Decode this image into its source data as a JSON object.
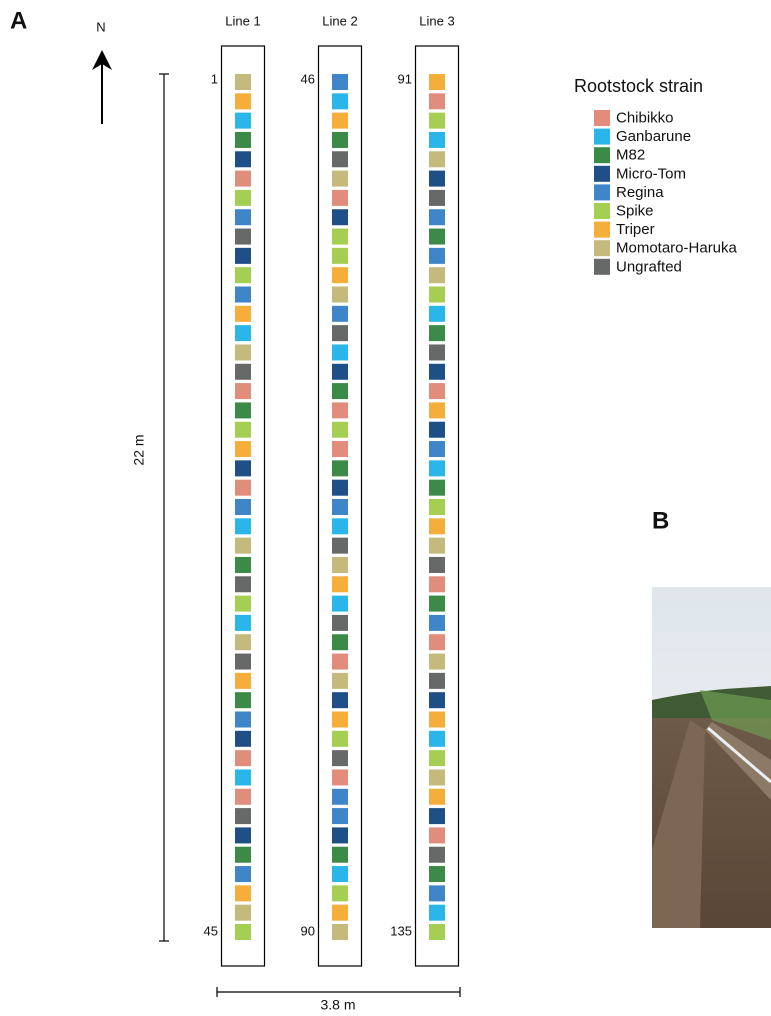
{
  "panel_a": {
    "label": "A",
    "north": "N",
    "length": "22 m",
    "width": "3.8 m",
    "legend": {
      "title": "Rootstock strain",
      "strains": [
        {
          "name": "Chibikko",
          "color": "#e28c7c"
        },
        {
          "name": "Ganbarune",
          "color": "#2ab6e9"
        },
        {
          "name": "M82",
          "color": "#3b8a48"
        },
        {
          "name": "Micro-Tom",
          "color": "#1f4f87"
        },
        {
          "name": "Regina",
          "color": "#3f86c8"
        },
        {
          "name": "Spike",
          "color": "#a5cf52"
        },
        {
          "name": "Triper",
          "color": "#f6ae3b"
        },
        {
          "name": "Momotaro-Haruka",
          "color": "#c3ba7c"
        },
        {
          "name": "Ungrafted",
          "color": "#676868"
        }
      ]
    },
    "lines": [
      {
        "label": "Line 1",
        "first": 1,
        "last": 45,
        "plots": [
          "Momotaro-Haruka",
          "Triper",
          "Ganbarune",
          "M82",
          "Micro-Tom",
          "Chibikko",
          "Spike",
          "Regina",
          "Ungrafted",
          "Micro-Tom",
          "Spike",
          "Regina",
          "Triper",
          "Ganbarune",
          "Momotaro-Haruka",
          "Ungrafted",
          "Chibikko",
          "M82",
          "Spike",
          "Triper",
          "Micro-Tom",
          "Chibikko",
          "Regina",
          "Ganbarune",
          "Momotaro-Haruka",
          "M82",
          "Ungrafted",
          "Spike",
          "Ganbarune",
          "Momotaro-Haruka",
          "Ungrafted",
          "Triper",
          "M82",
          "Regina",
          "Micro-Tom",
          "Chibikko",
          "Ganbarune",
          "Chibikko",
          "Ungrafted",
          "Micro-Tom",
          "M82",
          "Regina",
          "Triper",
          "Momotaro-Haruka",
          "Spike"
        ]
      },
      {
        "label": "Line 2",
        "first": 46,
        "last": 90,
        "plots": [
          "Regina",
          "Ganbarune",
          "Triper",
          "M82",
          "Ungrafted",
          "Momotaro-Haruka",
          "Chibikko",
          "Micro-Tom",
          "Spike",
          "Spike",
          "Triper",
          "Momotaro-Haruka",
          "Regina",
          "Ungrafted",
          "Ganbarune",
          "Micro-Tom",
          "M82",
          "Chibikko",
          "Spike",
          "Chibikko",
          "M82",
          "Micro-Tom",
          "Regina",
          "Ganbarune",
          "Ungrafted",
          "Momotaro-Haruka",
          "Triper",
          "Ganbarune",
          "Ungrafted",
          "M82",
          "Chibikko",
          "Momotaro-Haruka",
          "Micro-Tom",
          "Triper",
          "Spike",
          "Ungrafted",
          "Chibikko",
          "Regina",
          "Regina",
          "Micro-Tom",
          "M82",
          "Ganbarune",
          "Spike",
          "Triper",
          "Momotaro-Haruka"
        ]
      },
      {
        "label": "Line 3",
        "first": 91,
        "last": 135,
        "plots": [
          "Triper",
          "Chibikko",
          "Spike",
          "Ganbarune",
          "Momotaro-Haruka",
          "Micro-Tom",
          "Ungrafted",
          "Regina",
          "M82",
          "Regina",
          "Momotaro-Haruka",
          "Spike",
          "Ganbarune",
          "M82",
          "Ungrafted",
          "Micro-Tom",
          "Chibikko",
          "Triper",
          "Micro-Tom",
          "Regina",
          "Ganbarune",
          "M82",
          "Spike",
          "Triper",
          "Momotaro-Haruka",
          "Ungrafted",
          "Chibikko",
          "M82",
          "Regina",
          "Chibikko",
          "Momotaro-Haruka",
          "Ungrafted",
          "Micro-Tom",
          "Triper",
          "Ganbarune",
          "Spike",
          "Momotaro-Haruka",
          "Triper",
          "Micro-Tom",
          "Chibikko",
          "Ungrafted",
          "M82",
          "Regina",
          "Ganbarune",
          "Spike"
        ]
      }
    ]
  },
  "panel_b": {
    "label": "B"
  }
}
